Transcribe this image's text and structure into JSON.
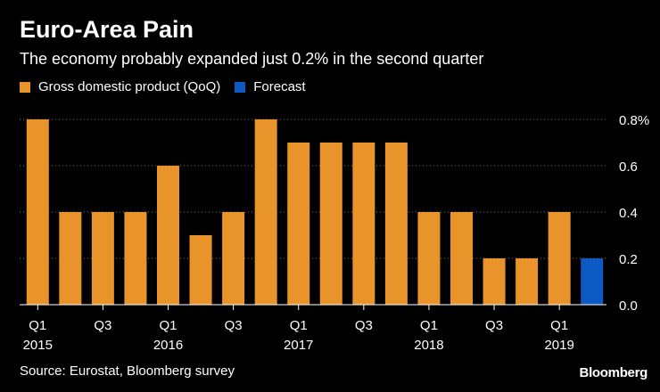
{
  "header": {
    "title": "Euro-Area Pain",
    "subtitle": "The economy probably expanded just 0.2% in the second quarter"
  },
  "legend": {
    "items": [
      {
        "label": "Gross domestic product (QoQ)",
        "color": "#e8942a"
      },
      {
        "label": "Forecast",
        "color": "#0d5ac4"
      }
    ]
  },
  "footer": {
    "source": "Source: Eurostat, Bloomberg survey",
    "brand": "Bloomberg"
  },
  "chart_data": {
    "type": "bar",
    "categories": [
      "Q1 2015",
      "Q2 2015",
      "Q3 2015",
      "Q4 2015",
      "Q1 2016",
      "Q2 2016",
      "Q3 2016",
      "Q4 2016",
      "Q1 2017",
      "Q2 2017",
      "Q3 2017",
      "Q4 2017",
      "Q1 2018",
      "Q2 2018",
      "Q3 2018",
      "Q4 2018",
      "Q1 2019",
      "Q2 2019"
    ],
    "series": [
      {
        "name": "Gross domestic product (QoQ)",
        "color": "#e8942a",
        "values": [
          0.8,
          0.4,
          0.4,
          0.4,
          0.6,
          0.3,
          0.4,
          0.8,
          0.7,
          0.7,
          0.7,
          0.7,
          0.4,
          0.4,
          0.2,
          0.2,
          0.4,
          null
        ]
      },
      {
        "name": "Forecast",
        "color": "#0d5ac4",
        "values": [
          null,
          null,
          null,
          null,
          null,
          null,
          null,
          null,
          null,
          null,
          null,
          null,
          null,
          null,
          null,
          null,
          null,
          0.2
        ]
      }
    ],
    "x_tick_labels": [
      {
        "index": 0,
        "quarter": "Q1",
        "year": "2015"
      },
      {
        "index": 2,
        "quarter": "Q3",
        "year": ""
      },
      {
        "index": 4,
        "quarter": "Q1",
        "year": "2016"
      },
      {
        "index": 6,
        "quarter": "Q3",
        "year": ""
      },
      {
        "index": 8,
        "quarter": "Q1",
        "year": "2017"
      },
      {
        "index": 10,
        "quarter": "Q3",
        "year": ""
      },
      {
        "index": 12,
        "quarter": "Q1",
        "year": "2018"
      },
      {
        "index": 14,
        "quarter": "Q3",
        "year": ""
      },
      {
        "index": 16,
        "quarter": "Q1",
        "year": "2019"
      }
    ],
    "y_ticks": [
      {
        "value": 0.0,
        "label": "0.0"
      },
      {
        "value": 0.2,
        "label": "0.2"
      },
      {
        "value": 0.4,
        "label": "0.4"
      },
      {
        "value": 0.6,
        "label": "0.6"
      },
      {
        "value": 0.8,
        "label": "0.8%"
      }
    ],
    "ylim": [
      0,
      0.8
    ],
    "y_axis_side": "right",
    "grid": true,
    "legend_position": "top-left"
  }
}
